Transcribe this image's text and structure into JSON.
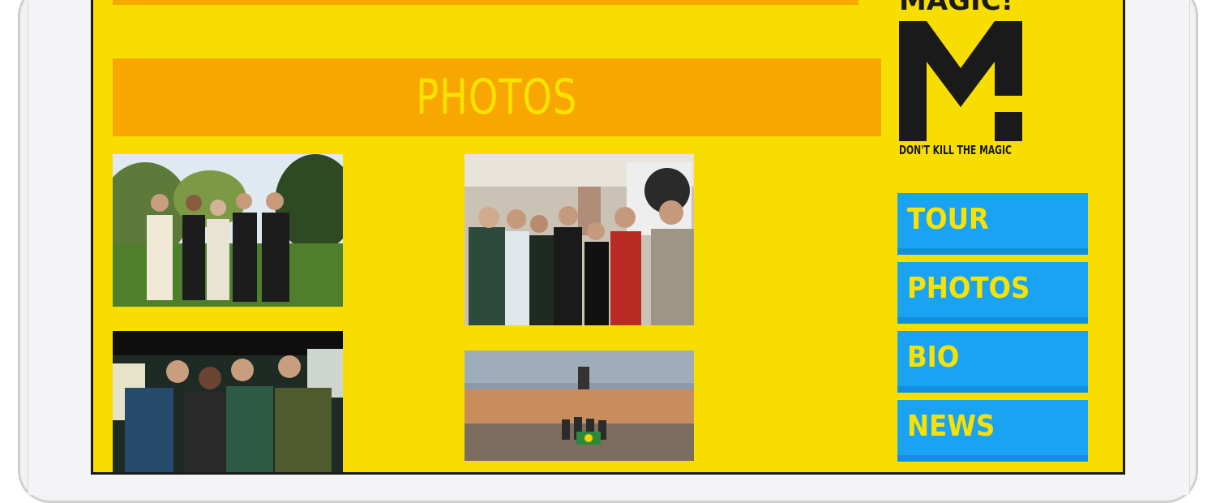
{
  "section": {
    "title": "PHOTOS"
  },
  "logo": {
    "wordmark": "MAGIC!",
    "tagline": "DON'T KILL THE MAGIC"
  },
  "nav": {
    "items": [
      {
        "label": "TOUR"
      },
      {
        "label": "PHOTOS"
      },
      {
        "label": "BIO"
      },
      {
        "label": "NEWS"
      }
    ]
  },
  "colors": {
    "page_bg": "#f8de00",
    "banner_bg": "#f8a700",
    "nav_bg": "#1aa3f3",
    "nav_text": "#f8e300",
    "logo": "#1a1a1a"
  }
}
